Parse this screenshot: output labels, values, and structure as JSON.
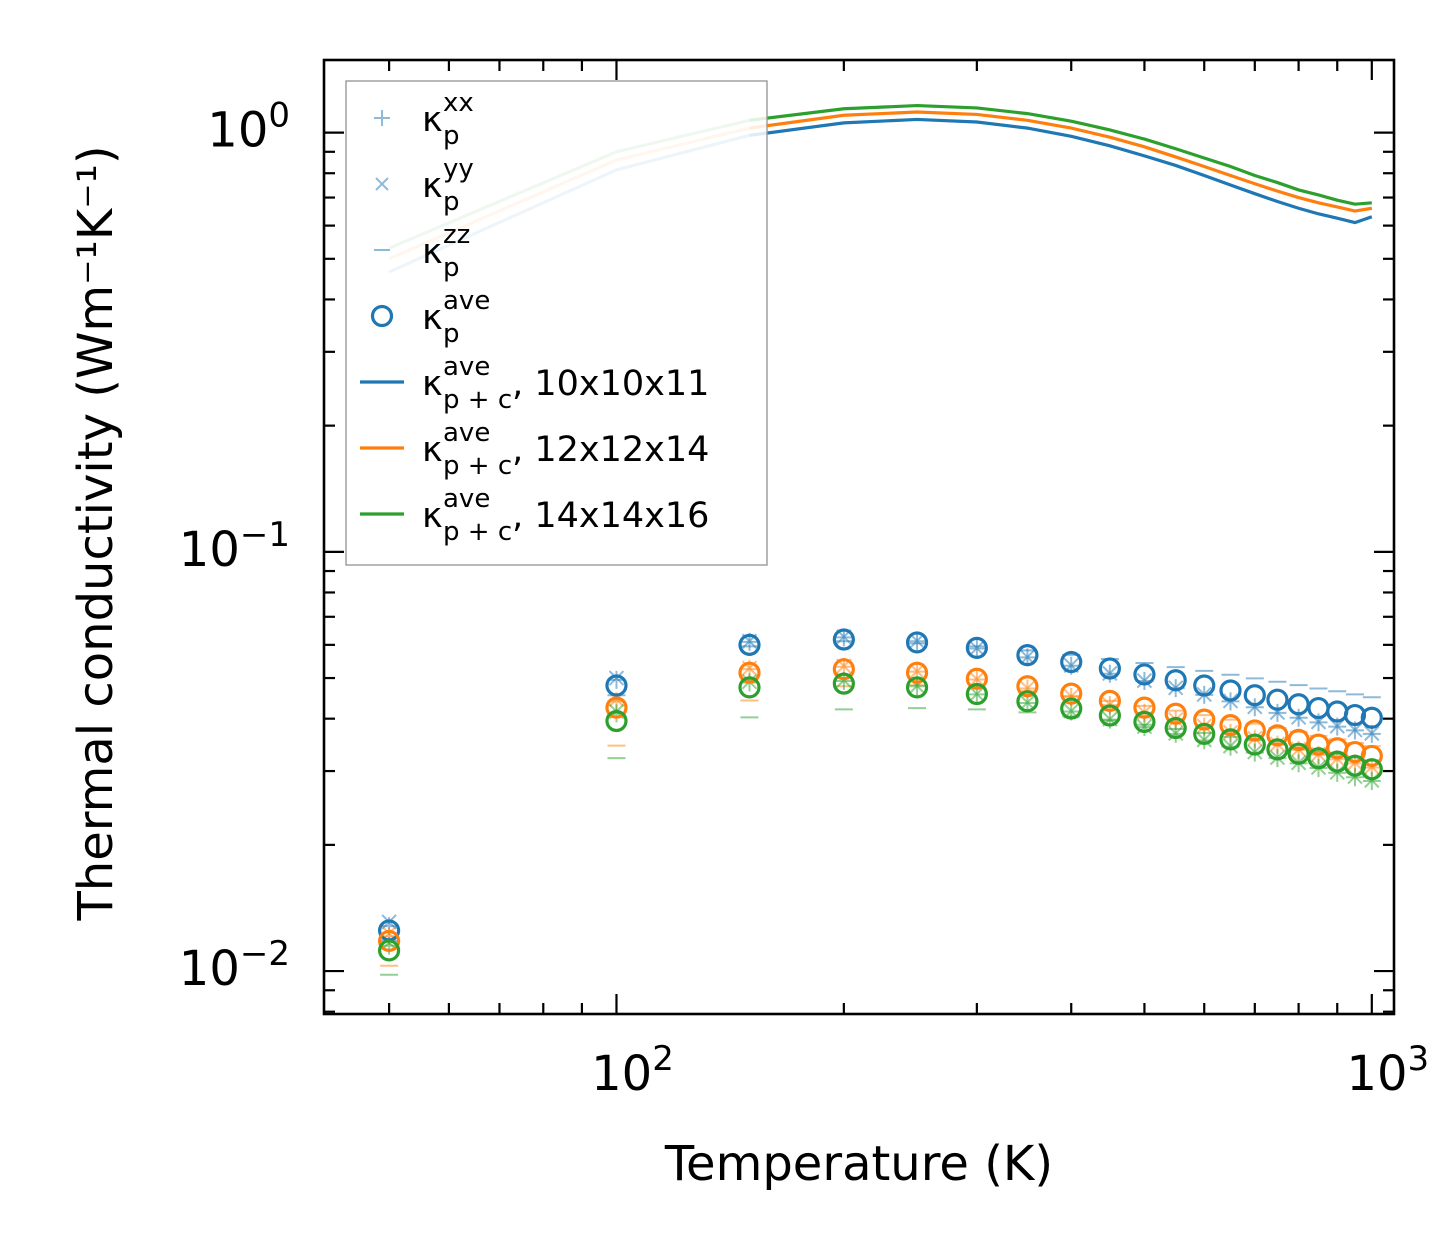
{
  "chart_data": {
    "type": "scatter",
    "title": "",
    "xlabel": "Temperature (K)",
    "ylabel": "Thermal conductivity (Wm⁻¹K⁻¹)",
    "xscale": "log",
    "yscale": "log",
    "xlim": [
      41,
      1070
    ],
    "ylim": [
      0.0079,
      1.49
    ],
    "x_ticks": [
      {
        "value": 100,
        "base": "10",
        "exp": "2"
      },
      {
        "value": 1000,
        "base": "10",
        "exp": "3"
      }
    ],
    "y_ticks": [
      {
        "value": 0.01,
        "base": "10",
        "exp": "−2"
      },
      {
        "value": 0.1,
        "base": "10",
        "exp": "−1"
      },
      {
        "value": 1.0,
        "base": "10",
        "exp": "0"
      }
    ],
    "legend_position": "upper-left",
    "colors": {
      "blue": "#1f77b4",
      "orange": "#ff7f0e",
      "green": "#2ca02c"
    },
    "legend": [
      {
        "marker": "plus",
        "base": "κ",
        "sub": "p",
        "sup": "xx",
        "suffix": ""
      },
      {
        "marker": "x",
        "base": "κ",
        "sub": "p",
        "sup": "yy",
        "suffix": ""
      },
      {
        "marker": "dash",
        "base": "κ",
        "sub": "p",
        "sup": "zz",
        "suffix": ""
      },
      {
        "marker": "circle",
        "base": "κ",
        "sub": "p",
        "sup": "ave",
        "suffix": ""
      },
      {
        "marker": "line",
        "color": "#1f77b4",
        "base": "κ",
        "sub": "p + c",
        "sup": "ave",
        "suffix": ", 10x10x11"
      },
      {
        "marker": "line",
        "color": "#ff7f0e",
        "base": "κ",
        "sub": "p + c",
        "sup": "ave",
        "suffix": ", 12x12x14"
      },
      {
        "marker": "line",
        "color": "#2ca02c",
        "base": "κ",
        "sub": "p + c",
        "sup": "ave",
        "suffix": ", 14x14x16"
      }
    ],
    "x": [
      50,
      100,
      150,
      200,
      250,
      300,
      350,
      400,
      450,
      500,
      550,
      600,
      650,
      700,
      750,
      800,
      850,
      900,
      950,
      1000
    ],
    "series": [
      {
        "name": "10x10x11",
        "color": "#1f77b4",
        "line_x": [
          50,
          100,
          150,
          200,
          250,
          300,
          350,
          400,
          450,
          500,
          550,
          600,
          650,
          700,
          750,
          800,
          850,
          900,
          950,
          1000
        ],
        "line_y": [
          0.465,
          0.815,
          0.985,
          1.055,
          1.075,
          1.06,
          1.025,
          0.98,
          0.93,
          0.88,
          0.835,
          0.79,
          0.75,
          0.715,
          0.685,
          0.66,
          0.64,
          0.625,
          0.61,
          0.63
        ],
        "ave": [
          0.0125,
          0.048,
          0.06,
          0.0618,
          0.0608,
          0.059,
          0.0567,
          0.0546,
          0.0527,
          0.051,
          0.0494,
          0.048,
          0.0467,
          0.0455,
          0.0444,
          0.0433,
          0.0424,
          0.0416,
          0.0408,
          0.0402
        ],
        "xx": [
          0.0128,
          0.0495,
          0.061,
          0.0625,
          0.0612,
          0.0588,
          0.056,
          0.0535,
          0.0512,
          0.0492,
          0.0473,
          0.0456,
          0.044,
          0.0426,
          0.0413,
          0.0402,
          0.0392,
          0.0383,
          0.0375,
          0.0368
        ],
        "yy": [
          0.0131,
          0.05,
          0.0612,
          0.0627,
          0.0613,
          0.0589,
          0.0561,
          0.0536,
          0.0513,
          0.0493,
          0.0474,
          0.0457,
          0.0441,
          0.0427,
          0.0414,
          0.0403,
          0.0393,
          0.0384,
          0.0376,
          0.0369
        ],
        "zz": [
          0.0118,
          0.0455,
          0.0595,
          0.0612,
          0.0605,
          0.0595,
          0.0582,
          0.0568,
          0.0555,
          0.0543,
          0.0531,
          0.052,
          0.0509,
          0.0499,
          0.049,
          0.0481,
          0.0472,
          0.0465,
          0.0457,
          0.045
        ]
      },
      {
        "name": "12x12x14",
        "color": "#ff7f0e",
        "line_x": [
          50,
          100,
          150,
          200,
          250,
          300,
          350,
          400,
          450,
          500,
          550,
          600,
          650,
          700,
          750,
          800,
          850,
          900,
          950,
          1000
        ],
        "line_y": [
          0.5,
          0.86,
          1.025,
          1.1,
          1.12,
          1.105,
          1.07,
          1.025,
          0.975,
          0.925,
          0.875,
          0.83,
          0.79,
          0.755,
          0.725,
          0.7,
          0.68,
          0.665,
          0.65,
          0.66
        ],
        "ave": [
          0.0118,
          0.0425,
          0.0515,
          0.0525,
          0.0515,
          0.0498,
          0.0478,
          0.0459,
          0.0441,
          0.0425,
          0.0411,
          0.0398,
          0.0386,
          0.0375,
          0.0365,
          0.0356,
          0.0347,
          0.034,
          0.0333,
          0.0326
        ],
        "xx": [
          0.0121,
          0.044,
          0.0525,
          0.0532,
          0.0518,
          0.0496,
          0.0472,
          0.0451,
          0.0431,
          0.0413,
          0.0397,
          0.0383,
          0.037,
          0.0358,
          0.0347,
          0.0337,
          0.0328,
          0.032,
          0.0313,
          0.0306
        ],
        "yy": [
          0.0123,
          0.0445,
          0.0528,
          0.0534,
          0.0519,
          0.0497,
          0.0473,
          0.0452,
          0.0432,
          0.0414,
          0.0398,
          0.0384,
          0.0371,
          0.0359,
          0.0348,
          0.0338,
          0.0329,
          0.0321,
          0.0314,
          0.0307
        ],
        "zz": [
          0.0103,
          0.0345,
          0.0442,
          0.0478,
          0.0481,
          0.0475,
          0.0465,
          0.0453,
          0.0441,
          0.0429,
          0.0418,
          0.0408,
          0.0398,
          0.0389,
          0.038,
          0.0372,
          0.0364,
          0.0357,
          0.035,
          0.0344
        ]
      },
      {
        "name": "14x14x16",
        "color": "#2ca02c",
        "line_x": [
          50,
          100,
          150,
          200,
          250,
          300,
          350,
          400,
          450,
          500,
          550,
          600,
          650,
          700,
          750,
          800,
          850,
          900,
          950,
          1000
        ],
        "line_y": [
          0.53,
          0.9,
          1.07,
          1.14,
          1.16,
          1.145,
          1.11,
          1.065,
          1.015,
          0.965,
          0.915,
          0.87,
          0.83,
          0.79,
          0.76,
          0.73,
          0.71,
          0.69,
          0.675,
          0.68
        ],
        "ave": [
          0.0112,
          0.0395,
          0.0475,
          0.0485,
          0.0475,
          0.0458,
          0.044,
          0.0423,
          0.0407,
          0.0393,
          0.038,
          0.0368,
          0.0357,
          0.0347,
          0.0338,
          0.033,
          0.0322,
          0.0316,
          0.0309,
          0.0303
        ],
        "xx": [
          0.0115,
          0.0412,
          0.0488,
          0.0492,
          0.0478,
          0.0457,
          0.0436,
          0.0416,
          0.0398,
          0.0382,
          0.0368,
          0.0355,
          0.0343,
          0.0332,
          0.0322,
          0.0313,
          0.0305,
          0.0297,
          0.029,
          0.0284
        ],
        "yy": [
          0.0117,
          0.0416,
          0.049,
          0.0494,
          0.0479,
          0.0458,
          0.0437,
          0.0417,
          0.0399,
          0.0383,
          0.0369,
          0.0356,
          0.0344,
          0.0333,
          0.0323,
          0.0314,
          0.0306,
          0.0298,
          0.0291,
          0.0285
        ],
        "zz": [
          0.0098,
          0.0322,
          0.0403,
          0.0421,
          0.0424,
          0.0421,
          0.0414,
          0.0405,
          0.0396,
          0.0387,
          0.0378,
          0.037,
          0.0362,
          0.0355,
          0.0348,
          0.0341,
          0.0335,
          0.0329,
          0.0323,
          0.0318
        ]
      }
    ]
  }
}
